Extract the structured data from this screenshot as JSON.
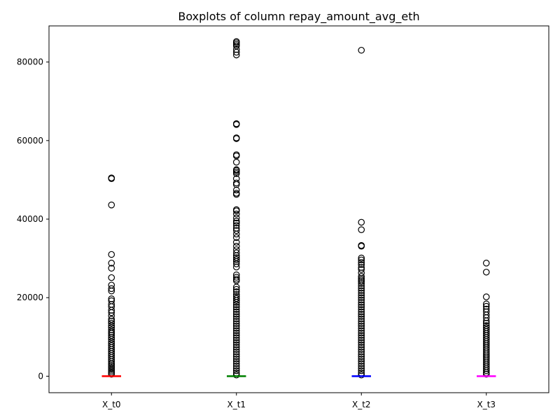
{
  "chart_data": {
    "type": "boxplot",
    "title": "Boxplots of column repay_amount_avg_eth",
    "xlabel": "",
    "ylabel": "",
    "categories": [
      "X_t0",
      "X_t1",
      "X_t2",
      "X_t3"
    ],
    "ylim": [
      -4200,
      89200
    ],
    "y_ticks": [
      0,
      20000,
      40000,
      60000,
      80000
    ],
    "grid": false,
    "colors": [
      "#ff0000",
      "#008000",
      "#0000ff",
      "#ff00ff"
    ],
    "boxes": [
      {
        "name": "X_t0",
        "whisker_low": 0,
        "q1": 0,
        "median": 0,
        "q3": 0,
        "whisker_high": 0,
        "outliers": [
          50500,
          50300,
          43600,
          31000,
          28800,
          27500,
          25100,
          23200,
          22300,
          21700,
          19700,
          19200,
          18300,
          17700,
          16800,
          16200,
          15400,
          14500,
          14000,
          13500,
          12900,
          12400,
          11800,
          11300,
          10900,
          10400,
          9900,
          9400,
          8800,
          8300,
          7800,
          7300,
          6800,
          6300,
          5800,
          5300,
          4800,
          4300,
          3800,
          3300,
          2900,
          2500,
          2100,
          1700,
          1300,
          900,
          500
        ]
      },
      {
        "name": "X_t1",
        "whisker_low": 0,
        "q1": 0,
        "median": 0,
        "q3": 0,
        "whisker_high": 0,
        "outliers": [
          85200,
          84900,
          84500,
          84100,
          83200,
          82500,
          81800,
          64300,
          64100,
          60700,
          60500,
          56400,
          56100,
          54500,
          52600,
          52400,
          52000,
          51600,
          50300,
          49200,
          48800,
          47400,
          46600,
          46300,
          42400,
          42100,
          41300,
          40300,
          39500,
          39000,
          38400,
          37700,
          37100,
          36200,
          35300,
          34100,
          33100,
          32200,
          31400,
          30700,
          30200,
          29700,
          29200,
          28600,
          27800,
          25800,
          25200,
          24700,
          24300,
          22700,
          22100,
          21500,
          20800,
          20300,
          19800,
          19300,
          18800,
          18200,
          17600,
          17000,
          16400,
          15800,
          15200,
          14600,
          14000,
          13400,
          12800,
          12200,
          11600,
          11000,
          10400,
          9800,
          9200,
          8600,
          8000,
          7400,
          6800,
          6200,
          5600,
          5000,
          4400,
          3800,
          3200,
          2600,
          2000,
          1400,
          800,
          300
        ]
      },
      {
        "name": "X_t2",
        "whisker_low": 0,
        "q1": 0,
        "median": 0,
        "q3": 0,
        "whisker_high": 0,
        "outliers": [
          83000,
          39200,
          37300,
          33300,
          33100,
          30100,
          29600,
          29000,
          28400,
          27700,
          27200,
          26300,
          25400,
          24900,
          24500,
          24100,
          23600,
          23000,
          22400,
          21800,
          21200,
          20600,
          20000,
          19400,
          18800,
          18200,
          17600,
          17000,
          16400,
          15800,
          15200,
          14600,
          14000,
          13400,
          12800,
          12200,
          11600,
          11000,
          10400,
          9800,
          9200,
          8600,
          8000,
          7400,
          6800,
          6200,
          5600,
          5000,
          4400,
          3800,
          3200,
          2600,
          2000,
          1400,
          800,
          300
        ]
      },
      {
        "name": "X_t3",
        "whisker_low": 0,
        "q1": 0,
        "median": 0,
        "q3": 0,
        "whisker_high": 0,
        "outliers": [
          28800,
          26500,
          20200,
          18400,
          17800,
          17100,
          16400,
          15600,
          14900,
          14100,
          13500,
          12900,
          12400,
          11900,
          11400,
          10900,
          10400,
          9900,
          9400,
          8900,
          8400,
          7900,
          7400,
          6900,
          6400,
          5900,
          5400,
          4900,
          4400,
          3900,
          3400,
          2900,
          2400,
          1900,
          1400,
          900,
          500
        ]
      }
    ]
  }
}
